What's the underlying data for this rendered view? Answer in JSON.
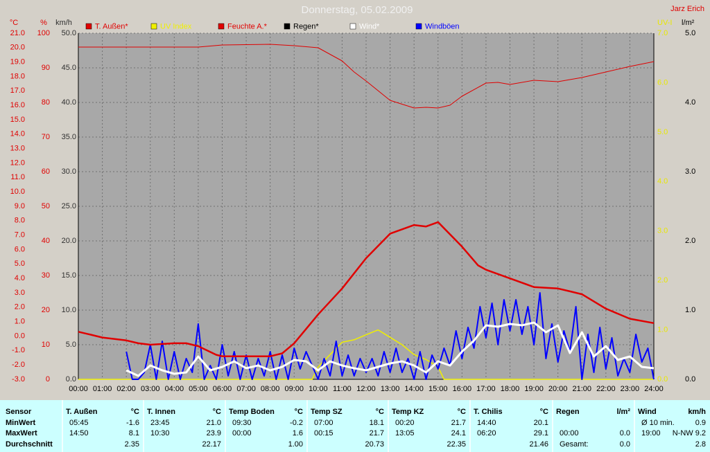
{
  "chart_data": {
    "type": "line",
    "title": "Donnerstag, 05.02.2009",
    "author": "Jarz Erich",
    "xlim": [
      0,
      24
    ],
    "xticks": [
      {
        "value": 0,
        "label": "00:00"
      },
      {
        "value": 1,
        "label": "01:00"
      },
      {
        "value": 2,
        "label": "02:00"
      },
      {
        "value": 3,
        "label": "03:00"
      },
      {
        "value": 4,
        "label": "04:00"
      },
      {
        "value": 5,
        "label": "05:00"
      },
      {
        "value": 6,
        "label": "06:00"
      },
      {
        "value": 7,
        "label": "07:00"
      },
      {
        "value": 8,
        "label": "08:00"
      },
      {
        "value": 9,
        "label": "09:00"
      },
      {
        "value": 10,
        "label": "10:00"
      },
      {
        "value": 11,
        "label": "11:00"
      },
      {
        "value": 12,
        "label": "12:00"
      },
      {
        "value": 13,
        "label": "13:00"
      },
      {
        "value": 14,
        "label": "14:00"
      },
      {
        "value": 15,
        "label": "15:00"
      },
      {
        "value": 16,
        "label": "16:00"
      },
      {
        "value": 17,
        "label": "17:00"
      },
      {
        "value": 18,
        "label": "18:00"
      },
      {
        "value": 19,
        "label": "19:00"
      },
      {
        "value": 20,
        "label": "20:00"
      },
      {
        "value": 21,
        "label": "21:00"
      },
      {
        "value": 22,
        "label": "22:00"
      },
      {
        "value": 23,
        "label": "23:00"
      },
      {
        "value": 24,
        "label": "24:00"
      }
    ],
    "grid": true,
    "grid_axis": 2,
    "axes": [
      {
        "label": "°C",
        "side": "left",
        "color": "#e00000",
        "lim": [
          -3,
          21
        ],
        "ticks": [
          {
            "value": -3,
            "label": "-3.0"
          },
          {
            "value": -2,
            "label": "-2.0"
          },
          {
            "value": -1,
            "label": "-1.0"
          },
          {
            "value": 0,
            "label": "0.0"
          },
          {
            "value": 1,
            "label": "1.0"
          },
          {
            "value": 2,
            "label": "2.0"
          },
          {
            "value": 3,
            "label": "3.0"
          },
          {
            "value": 4,
            "label": "4.0"
          },
          {
            "value": 5,
            "label": "5.0"
          },
          {
            "value": 6,
            "label": "6.0"
          },
          {
            "value": 7,
            "label": "7.0"
          },
          {
            "value": 8,
            "label": "8.0"
          },
          {
            "value": 9,
            "label": "9.0"
          },
          {
            "value": 10,
            "label": "10.0"
          },
          {
            "value": 11,
            "label": "11.0"
          },
          {
            "value": 12,
            "label": "12.0"
          },
          {
            "value": 13,
            "label": "13.0"
          },
          {
            "value": 14,
            "label": "14.0"
          },
          {
            "value": 15,
            "label": "15.0"
          },
          {
            "value": 16,
            "label": "16.0"
          },
          {
            "value": 17,
            "label": "17.0"
          },
          {
            "value": 18,
            "label": "18.0"
          },
          {
            "value": 19,
            "label": "19.0"
          },
          {
            "value": 20,
            "label": "20.0"
          },
          {
            "value": 21,
            "label": "21.0"
          }
        ]
      },
      {
        "label": "%",
        "side": "left",
        "color": "#e00000",
        "lim": [
          0,
          100
        ],
        "ticks": [
          0,
          10,
          20,
          30,
          40,
          50,
          60,
          70,
          80,
          90,
          100
        ]
      },
      {
        "label": "km/h",
        "side": "left",
        "color": "#303030",
        "lim": [
          0,
          50
        ],
        "ticks": [
          {
            "value": 0,
            "label": "0.0"
          },
          {
            "value": 5,
            "label": "5.0"
          },
          {
            "value": 10,
            "label": "10.0"
          },
          {
            "value": 15,
            "label": "15.0"
          },
          {
            "value": 20,
            "label": "20.0"
          },
          {
            "value": 25,
            "label": "25.0"
          },
          {
            "value": 30,
            "label": "30.0"
          },
          {
            "value": 35,
            "label": "35.0"
          },
          {
            "value": 40,
            "label": "40.0"
          },
          {
            "value": 45,
            "label": "45.0"
          },
          {
            "value": 50,
            "label": "50.0"
          }
        ]
      },
      {
        "label": "UV-I",
        "side": "right",
        "color": "#e8e800",
        "lim": [
          0,
          7
        ],
        "ticks": [
          {
            "value": 0,
            "label": "0.0"
          },
          {
            "value": 1,
            "label": "1.0"
          },
          {
            "value": 2,
            "label": "2.0"
          },
          {
            "value": 3,
            "label": "3.0"
          },
          {
            "value": 4,
            "label": "4.0"
          },
          {
            "value": 5,
            "label": "5.0"
          },
          {
            "value": 6,
            "label": "6.0"
          },
          {
            "value": 7,
            "label": "7.0"
          }
        ]
      },
      {
        "label": "l/m²",
        "side": "right",
        "color": "#000000",
        "lim": [
          0,
          5
        ],
        "ticks": [
          {
            "value": 0,
            "label": "0.0"
          },
          {
            "value": 1,
            "label": "1.0"
          },
          {
            "value": 2,
            "label": "2.0"
          },
          {
            "value": 3,
            "label": "3.0"
          },
          {
            "value": 4,
            "label": "4.0"
          },
          {
            "value": 5,
            "label": "5.0"
          }
        ]
      }
    ],
    "series": [
      {
        "name": "T. Außen*",
        "color": "#e00000",
        "width": 2.5,
        "axis": 0,
        "x": [
          0,
          0.5,
          1,
          2,
          2.5,
          3,
          4,
          4.5,
          5,
          5.75,
          6,
          7,
          8,
          8.5,
          9,
          10,
          11,
          12,
          13,
          14,
          14.5,
          15,
          16,
          16.67,
          17,
          18,
          19,
          20,
          20.5,
          21,
          22,
          23,
          24
        ],
        "values": [
          0.3,
          0.1,
          -0.1,
          -0.3,
          -0.5,
          -0.6,
          -0.5,
          -0.5,
          -0.7,
          -1.3,
          -1.4,
          -1.4,
          -1.4,
          -1.2,
          -0.5,
          1.5,
          3.3,
          5.4,
          7.1,
          7.7,
          7.6,
          7.9,
          6.2,
          4.9,
          4.6,
          4.0,
          3.4,
          3.3,
          3.1,
          2.9,
          1.9,
          1.2,
          0.9
        ]
      },
      {
        "name": "UV Index",
        "color": "#f0f000",
        "width": 1.5,
        "axis": 3,
        "x": [
          0,
          9.75,
          10,
          10.5,
          11,
          11.5,
          12,
          12.5,
          13,
          13.5,
          14,
          14.5,
          15,
          15.25,
          24
        ],
        "values": [
          0,
          0,
          0.25,
          0.5,
          0.75,
          0.8,
          0.9,
          1.0,
          0.85,
          0.7,
          0.5,
          0.4,
          0.25,
          0,
          0
        ]
      },
      {
        "name": "Feuchte A.*",
        "color": "#e00000",
        "width": 1,
        "axis": 1,
        "x": [
          0,
          5,
          6,
          8,
          9,
          10,
          11,
          11.5,
          12,
          13,
          14,
          14.5,
          15,
          15.5,
          16,
          17,
          17.5,
          18,
          19,
          20,
          21,
          22,
          23,
          24
        ],
        "values": [
          96,
          96,
          96.6,
          96.8,
          96.4,
          95.8,
          92,
          88.8,
          86.2,
          80.6,
          78.4,
          78.6,
          78.4,
          79.2,
          81.8,
          85.6,
          85.8,
          85.2,
          86.4,
          86,
          87.2,
          88.8,
          90.4,
          91.8
        ]
      },
      {
        "name": "Regen*",
        "color": "#000000",
        "width": 1,
        "axis": 4,
        "x": [
          0,
          24
        ],
        "values": [
          0,
          0
        ]
      },
      {
        "name": "Wind*",
        "color": "#ffffff",
        "width": 3,
        "axis": 2,
        "x": [
          2,
          2.5,
          3,
          3.5,
          4,
          4.5,
          5,
          5.5,
          6,
          6.5,
          7,
          7.5,
          8,
          8.5,
          9,
          9.5,
          10,
          10.5,
          11,
          11.5,
          12,
          12.5,
          13,
          13.5,
          14,
          14.5,
          15,
          15.5,
          16,
          16.5,
          17,
          17.5,
          18,
          18.5,
          19,
          19.5,
          20,
          20.5,
          21,
          21.5,
          22,
          22.5,
          23,
          23.5,
          24
        ],
        "values": [
          1.3,
          0.5,
          2.0,
          1.3,
          0.8,
          1.0,
          3.3,
          1.3,
          1.8,
          2.6,
          1.6,
          2.0,
          1.3,
          1.8,
          2.8,
          2.6,
          1.3,
          2.6,
          2.0,
          1.6,
          1.3,
          1.8,
          2.3,
          2.6,
          2.0,
          1.0,
          2.6,
          2.0,
          4.0,
          5.6,
          7.8,
          7.6,
          8.0,
          7.8,
          8.2,
          6.8,
          7.8,
          3.8,
          6.8,
          3.3,
          4.8,
          2.8,
          3.3,
          1.8,
          1.6
        ]
      },
      {
        "name": "Windböen",
        "color": "#0000ff",
        "width": 2,
        "axis": 2,
        "x": [
          2,
          2.25,
          2.5,
          2.75,
          3,
          3.25,
          3.5,
          3.75,
          4,
          4.25,
          4.5,
          4.75,
          5,
          5.25,
          5.5,
          5.75,
          6,
          6.25,
          6.5,
          6.75,
          7,
          7.25,
          7.5,
          7.75,
          8,
          8.25,
          8.5,
          8.75,
          9,
          9.25,
          9.5,
          9.75,
          10,
          10.25,
          10.5,
          10.75,
          11,
          11.25,
          11.5,
          11.75,
          12,
          12.25,
          12.5,
          12.75,
          13,
          13.25,
          13.5,
          13.75,
          14,
          14.25,
          14.5,
          14.75,
          15,
          15.25,
          15.5,
          15.75,
          16,
          16.25,
          16.5,
          16.75,
          17,
          17.25,
          17.5,
          17.75,
          18,
          18.25,
          18.5,
          18.75,
          19,
          19.25,
          19.5,
          19.75,
          20,
          20.25,
          20.5,
          20.75,
          21,
          21.25,
          21.5,
          21.75,
          22,
          22.25,
          22.5,
          22.75,
          23,
          23.25,
          23.5,
          23.75,
          24
        ],
        "values": [
          4.0,
          0,
          0,
          1.0,
          5.0,
          0,
          5.5,
          0,
          4.0,
          0,
          3.0,
          1.0,
          8.0,
          0,
          2.0,
          0,
          5.0,
          0.5,
          4.0,
          0,
          3.5,
          0,
          3.0,
          0.5,
          4.0,
          0,
          3.5,
          0,
          4.5,
          1.5,
          4.0,
          2.0,
          0,
          3.0,
          0.5,
          5.5,
          0.5,
          3.5,
          0.5,
          3.0,
          1.0,
          3.0,
          0.5,
          4.0,
          1.0,
          4.5,
          1.0,
          3.0,
          0,
          4.0,
          0,
          3.5,
          1.5,
          4.5,
          2.0,
          7.0,
          3.0,
          7.5,
          4.5,
          10.5,
          6.0,
          11.0,
          5.0,
          11.5,
          7.0,
          11.5,
          6.5,
          10.5,
          5.0,
          12.5,
          3.0,
          8.0,
          2.5,
          7.0,
          4.0,
          10.5,
          0,
          6.5,
          1.0,
          7.5,
          1.5,
          6.0,
          0.5,
          3.0,
          1.0,
          6.5,
          2.5,
          4.5,
          0
        ]
      }
    ]
  },
  "table": {
    "row_labels": [
      "Sensor",
      "MinWert",
      "MaxWert",
      "Durchschnitt"
    ],
    "groups": [
      {
        "name": "T. Außen",
        "unit": "°C",
        "rows": [
          {
            "left": "05:45",
            "right": "-1.6"
          },
          {
            "left": "14:50",
            "right": "8.1"
          },
          {
            "right": "2.35"
          }
        ]
      },
      {
        "name": "T. Innen",
        "unit": "°C",
        "rows": [
          {
            "left": "23:45",
            "right": "21.0"
          },
          {
            "left": "10:30",
            "right": "23.9"
          },
          {
            "right": "22.17"
          }
        ]
      },
      {
        "name": "Temp Boden",
        "unit": "°C",
        "rows": [
          {
            "left": "09:30",
            "right": "-0.2"
          },
          {
            "left": "00:00",
            "right": "1.6"
          },
          {
            "right": "1.00"
          }
        ]
      },
      {
        "name": "Temp SZ",
        "unit": "°C",
        "rows": [
          {
            "left": "07:00",
            "right": "18.1"
          },
          {
            "left": "00:15",
            "right": "21.7"
          },
          {
            "right": "20.73"
          }
        ]
      },
      {
        "name": "Temp KZ",
        "unit": "°C",
        "rows": [
          {
            "left": "00:20",
            "right": "21.7"
          },
          {
            "left": "13:05",
            "right": "24.1"
          },
          {
            "right": "22.35"
          }
        ]
      },
      {
        "name": "T. Chilis",
        "unit": "°C",
        "rows": [
          {
            "left": "14:40",
            "right": "20.1"
          },
          {
            "left": "06:20",
            "right": "29.1"
          },
          {
            "right": "21.46"
          }
        ]
      },
      {
        "name": "Regen",
        "unit": "l/m²",
        "rows": [
          {},
          {
            "left": "00:00",
            "right": "0.0"
          },
          {
            "left": "Gesamt:",
            "right": "0.0"
          }
        ]
      },
      {
        "name": "Wind",
        "unit": "km/h",
        "rows": [
          {
            "left": "Ø 10 min.",
            "right": "0.9"
          },
          {
            "left": "19:00",
            "right": "N-NW 9.2"
          },
          {
            "right": "2.8"
          }
        ]
      }
    ]
  }
}
